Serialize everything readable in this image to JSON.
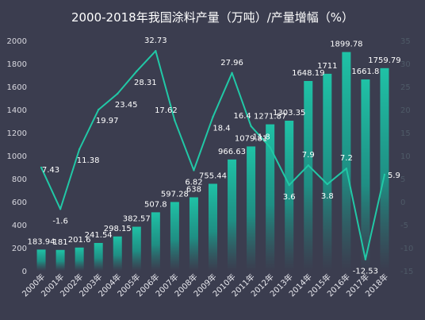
{
  "chart_data": {
    "type": "bar+line",
    "title": "2000-2018年我国涂料产量（万吨）/产量增幅（%）",
    "categories": [
      "2000年",
      "2001年",
      "2002年",
      "2003年",
      "2004年",
      "2005年",
      "2006年",
      "2007年",
      "2008年",
      "2009年",
      "2010年",
      "2011年",
      "2012年",
      "2013年",
      "2014年",
      "2015年",
      "2016年",
      "2017年",
      "2018年"
    ],
    "series": [
      {
        "name": "产量（万吨）",
        "type": "bar",
        "axis": "left",
        "values": [
          183.94,
          181,
          201.6,
          241.54,
          298.15,
          382.57,
          507.8,
          597.28,
          638,
          755.44,
          966.63,
          1079.81,
          1271.87,
          1303.35,
          1648.19,
          1711,
          1899.78,
          1661.8,
          1759.79
        ],
        "labels": [
          "183.94",
          "181",
          "201.6",
          "241.54",
          "298.15",
          "382.57",
          "507.8",
          "597.28",
          "638",
          "755.44",
          "966.63",
          "1079.81",
          "1271.87",
          "1303.35",
          "1648.19",
          "1711",
          "1899.78",
          "1661.8",
          "1759.79"
        ]
      },
      {
        "name": "产量增幅（%）",
        "type": "line",
        "axis": "right",
        "values": [
          7.43,
          -1.6,
          11.38,
          19.97,
          23.45,
          28.31,
          32.73,
          17.62,
          6.82,
          18.4,
          27.96,
          16.4,
          11.8,
          3.6,
          7.9,
          3.8,
          7.2,
          -12.53,
          5.9
        ],
        "labels": [
          "7.43",
          "-1.6",
          "11.38",
          "19.97",
          "23.45",
          "28.31",
          "32.73",
          "17.62",
          "6.82",
          "18.4",
          "27.96",
          "16.4",
          "11.8",
          "3.6",
          "7.9",
          "3.8",
          "7.2",
          "-12.53",
          "5.9"
        ]
      }
    ],
    "y_left": {
      "min": 0,
      "max": 2000,
      "ticks": [
        "0",
        "200",
        "400",
        "600",
        "800",
        "1000",
        "1200",
        "1400",
        "1600",
        "1800",
        "2000"
      ]
    },
    "y_right": {
      "min": -15,
      "max": 35,
      "ticks": [
        "-15",
        "-10",
        "-5",
        "0",
        "5",
        "10",
        "15",
        "20",
        "25",
        "30",
        "35"
      ]
    },
    "grid": false,
    "legend": "none",
    "colors": {
      "background": "#3b3d4f",
      "bar_top": "#1fc2a6",
      "bar_bottom": "#3b3d4f",
      "line": "#21c8a6",
      "text": "#ffffff",
      "axis_text": "#d8d8df",
      "right_axis_text": "#4e5a67"
    }
  }
}
